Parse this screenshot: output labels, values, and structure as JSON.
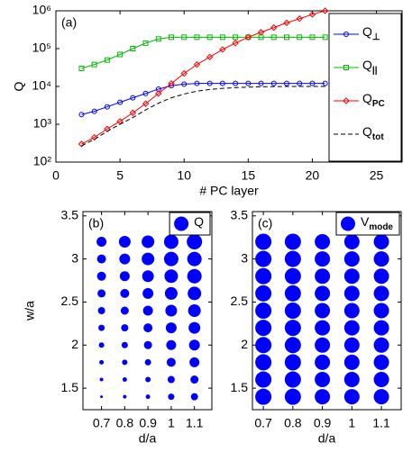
{
  "chart_data": [
    {
      "type": "line",
      "annotation": "(a)",
      "xlabel": "# PC layer",
      "ylabel": "Q",
      "xlim": [
        0,
        27
      ],
      "xticks": [
        0,
        5,
        10,
        15,
        20,
        25
      ],
      "ylim": [
        100,
        1000000
      ],
      "yscale": "log",
      "yticks": [
        {
          "value": 100,
          "label": "10²"
        },
        {
          "value": 1000,
          "label": "10³"
        },
        {
          "value": 10000,
          "label": "10⁴"
        },
        {
          "value": 100000,
          "label": "10⁵"
        },
        {
          "value": 1000000,
          "label": "10⁶"
        }
      ],
      "legend": "upper right",
      "x": [
        2,
        3,
        4,
        5,
        6,
        7,
        8,
        9,
        10,
        11,
        12,
        13,
        14,
        15,
        16,
        17,
        18,
        19,
        20,
        21
      ],
      "series": [
        {
          "name": "Q⊥",
          "color": "#0000ff",
          "marker": "circle",
          "linestyle": "solid",
          "values": [
            1800,
            2200,
            2900,
            3800,
            5000,
            6500,
            8500,
            10500,
            11500,
            12000,
            12000,
            12000,
            12000,
            12000,
            12000,
            12000,
            12000,
            12000,
            12000,
            12000
          ]
        },
        {
          "name": "Q||",
          "color": "#00bb00",
          "marker": "square",
          "linestyle": "solid",
          "values": [
            30000,
            38000,
            50000,
            70000,
            100000,
            140000,
            180000,
            200000,
            200000,
            200000,
            200000,
            200000,
            200000,
            200000,
            200000,
            200000,
            200000,
            200000,
            200000,
            200000
          ]
        },
        {
          "name": "QPC",
          "color": "#ff0000",
          "marker": "diamond",
          "linestyle": "solid",
          "values": [
            300,
            450,
            750,
            1200,
            2000,
            3500,
            6500,
            12000,
            22000,
            38000,
            60000,
            95000,
            140000,
            200000,
            270000,
            360000,
            480000,
            620000,
            800000,
            1000000
          ]
        },
        {
          "name": "Qtot",
          "color": "#000000",
          "marker": "none",
          "linestyle": "dashed",
          "values": [
            270,
            400,
            650,
            1000,
            1500,
            2400,
            3600,
            5000,
            6300,
            7500,
            8300,
            8900,
            9300,
            9600,
            9800,
            9900,
            10000,
            10000,
            10000,
            10000
          ]
        }
      ]
    },
    {
      "type": "scatter",
      "annotation": "(b)",
      "xlabel": "d/a",
      "ylabel": "w/a",
      "xlim": [
        0.62,
        1.175
      ],
      "xticks": [
        0.7,
        0.8,
        0.9,
        1,
        1.1
      ],
      "ylim": [
        1.25,
        3.55
      ],
      "yticks": [
        1.5,
        2,
        2.5,
        3,
        3.5
      ],
      "legend": "upper right",
      "series": [
        {
          "name": "Q",
          "color": "#0000ff",
          "x": [
            0.7,
            0.7,
            0.7,
            0.7,
            0.7,
            0.7,
            0.7,
            0.7,
            0.7,
            0.7,
            0.8,
            0.8,
            0.8,
            0.8,
            0.8,
            0.8,
            0.8,
            0.8,
            0.8,
            0.8,
            0.9,
            0.9,
            0.9,
            0.9,
            0.9,
            0.9,
            0.9,
            0.9,
            0.9,
            0.9,
            1,
            1,
            1,
            1,
            1,
            1,
            1,
            1,
            1,
            1,
            1.1,
            1.1,
            1.1,
            1.1,
            1.1,
            1.1,
            1.1,
            1.1,
            1.1,
            1.1
          ],
          "y": [
            1.4,
            1.6,
            1.8,
            2,
            2.2,
            2.4,
            2.6,
            2.8,
            3,
            3.2,
            1.4,
            1.6,
            1.8,
            2,
            2.2,
            2.4,
            2.6,
            2.8,
            3,
            3.2,
            1.4,
            1.6,
            1.8,
            2,
            2.2,
            2.4,
            2.6,
            2.8,
            3,
            3.2,
            1.4,
            1.6,
            1.8,
            2,
            2.2,
            2.4,
            2.6,
            2.8,
            3,
            3.2,
            1.4,
            1.6,
            1.8,
            2,
            2.2,
            2.4,
            2.6,
            2.8,
            3,
            3.2
          ],
          "sizes": [
            1.5,
            2,
            2.5,
            3,
            3.5,
            4,
            4.5,
            5,
            5,
            5.5,
            2,
            2.5,
            3,
            3.5,
            4,
            4.5,
            5,
            5.5,
            6,
            6.5,
            2.5,
            3,
            3.5,
            4.5,
            5,
            5.5,
            6,
            6.5,
            7,
            7,
            3.5,
            4,
            5,
            5.5,
            6,
            6.5,
            7,
            7.5,
            8,
            8,
            4,
            4.5,
            5.5,
            6,
            6.5,
            7,
            7.5,
            8,
            8,
            8.5
          ]
        }
      ]
    },
    {
      "type": "scatter",
      "annotation": "(c)",
      "xlabel": "d/a",
      "xlim": [
        0.663,
        1.167
      ],
      "xticks": [
        0.7,
        0.8,
        0.9,
        1,
        1.1
      ],
      "ylim": [
        1.25,
        3.55
      ],
      "yticks": [
        1.5,
        2,
        2.5,
        3,
        3.5
      ],
      "legend": "upper right",
      "series": [
        {
          "name": "Vmode",
          "color": "#0000ff",
          "x": [
            0.7,
            0.7,
            0.7,
            0.7,
            0.7,
            0.7,
            0.7,
            0.7,
            0.7,
            0.7,
            0.8,
            0.8,
            0.8,
            0.8,
            0.8,
            0.8,
            0.8,
            0.8,
            0.8,
            0.8,
            0.9,
            0.9,
            0.9,
            0.9,
            0.9,
            0.9,
            0.9,
            0.9,
            0.9,
            0.9,
            1,
            1,
            1,
            1,
            1,
            1,
            1,
            1,
            1,
            1,
            1.1,
            1.1,
            1.1,
            1.1,
            1.1,
            1.1,
            1.1,
            1.1,
            1.1,
            1.1
          ],
          "y": [
            1.4,
            1.6,
            1.8,
            2,
            2.2,
            2.4,
            2.6,
            2.8,
            3,
            3.2,
            1.4,
            1.6,
            1.8,
            2,
            2.2,
            2.4,
            2.6,
            2.8,
            3,
            3.2,
            1.4,
            1.6,
            1.8,
            2,
            2.2,
            2.4,
            2.6,
            2.8,
            3,
            3.2,
            1.4,
            1.6,
            1.8,
            2,
            2.2,
            2.4,
            2.6,
            2.8,
            3,
            3.2,
            1.4,
            1.6,
            1.8,
            2,
            2.2,
            2.4,
            2.6,
            2.8,
            3,
            3.2
          ],
          "sizes": [
            9,
            9,
            9,
            9,
            9,
            9,
            9,
            9,
            9,
            9,
            9,
            9,
            9,
            9,
            9,
            9,
            9,
            9,
            9,
            9,
            8.5,
            8.5,
            8.5,
            8.5,
            8.5,
            8.5,
            8.5,
            8.5,
            8.5,
            8.5,
            8.5,
            8.5,
            8.5,
            8.5,
            8.5,
            8.5,
            8.5,
            8.5,
            8.5,
            8.5,
            8.5,
            8.5,
            8.5,
            8.5,
            8.5,
            8.5,
            8.5,
            8.5,
            8.5,
            8.5
          ]
        }
      ]
    }
  ]
}
